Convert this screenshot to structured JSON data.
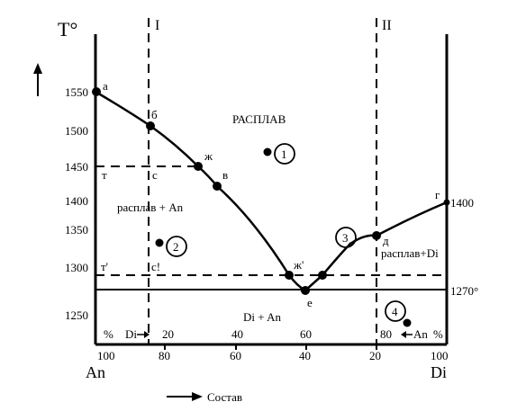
{
  "axis": {
    "y_title": "T°",
    "y_ticks": [
      "1550",
      "1500",
      "1450",
      "1400",
      "1350",
      "1300",
      "1250"
    ],
    "x_ticks": [
      "100",
      "80",
      "60",
      "40",
      "20",
      "100"
    ],
    "x_sub_ticks": [
      "%",
      "Di",
      "20",
      "40",
      "60",
      "80",
      "An",
      "%"
    ],
    "left_end_label": "An",
    "right_end_label": "Di",
    "x_title": "Состав"
  },
  "sections": {
    "left": "I",
    "right": "II"
  },
  "regions": {
    "melt": "РАСПЛАВ",
    "melt_an": "расплав + An",
    "melt_di": "расплав+Di",
    "solid": "Di + An"
  },
  "points": {
    "a": "а",
    "b": "б",
    "v": "в",
    "zh": "ж",
    "zh_prime": "ж'",
    "e": "е",
    "d": "д",
    "g": "г",
    "t": "т",
    "t_prime": "т'",
    "s": "с",
    "s_prime": "с!"
  },
  "right_labels": {
    "g_temp": "1400",
    "eutectic_temp": "1270°"
  },
  "markers": [
    "1",
    "2",
    "3",
    "4"
  ]
}
